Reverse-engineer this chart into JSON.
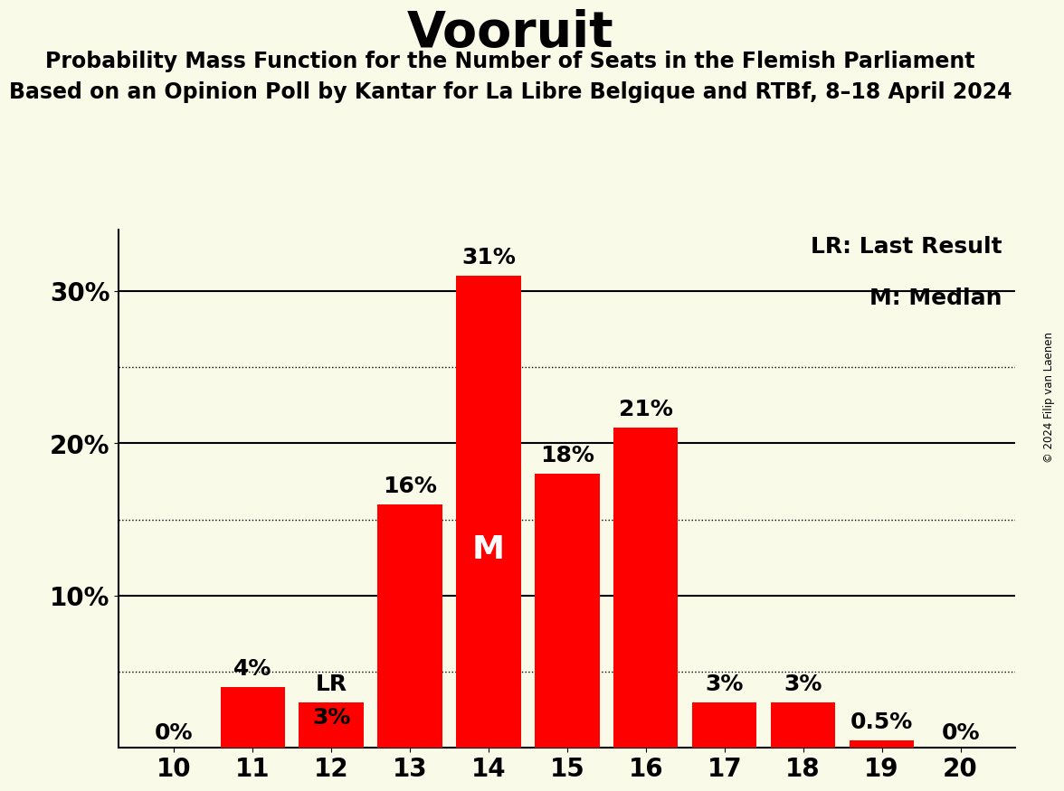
{
  "title": "Vooruit",
  "subtitle1": "Probability Mass Function for the Number of Seats in the Flemish Parliament",
  "subtitle2": "Based on an Opinion Poll by Kantar for La Libre Belgique and RTBf, 8–18 April 2024",
  "copyright": "© 2024 Filip van Laenen",
  "seats": [
    10,
    11,
    12,
    13,
    14,
    15,
    16,
    17,
    18,
    19,
    20
  ],
  "probabilities": [
    0.0,
    4.0,
    3.0,
    16.0,
    31.0,
    18.0,
    21.0,
    3.0,
    3.0,
    0.5,
    0.0
  ],
  "bar_labels": [
    "0%",
    "4%",
    "3%",
    "16%",
    "31%",
    "18%",
    "21%",
    "3%",
    "3%",
    "0.5%",
    "0%"
  ],
  "bar_color": "#ff0000",
  "background_color": "#fafae8",
  "text_color": "#000000",
  "median_seat": 14,
  "last_result_seat": 12,
  "ylim_max": 34,
  "ytick_values": [
    10,
    20,
    30
  ],
  "ytick_labels": [
    "10%",
    "20%",
    "30%"
  ],
  "dotted_grid_levels": [
    5,
    15,
    25
  ],
  "solid_grid_levels": [
    10,
    20,
    30
  ],
  "grid_color": "#000000",
  "legend_lr": "LR: Last Result",
  "legend_m": "M: Median",
  "median_label": "M",
  "lr_label": "LR",
  "title_fontsize": 40,
  "subtitle_fontsize": 17,
  "tick_fontsize": 20,
  "bar_label_fontsize": 18,
  "legend_fontsize": 18
}
